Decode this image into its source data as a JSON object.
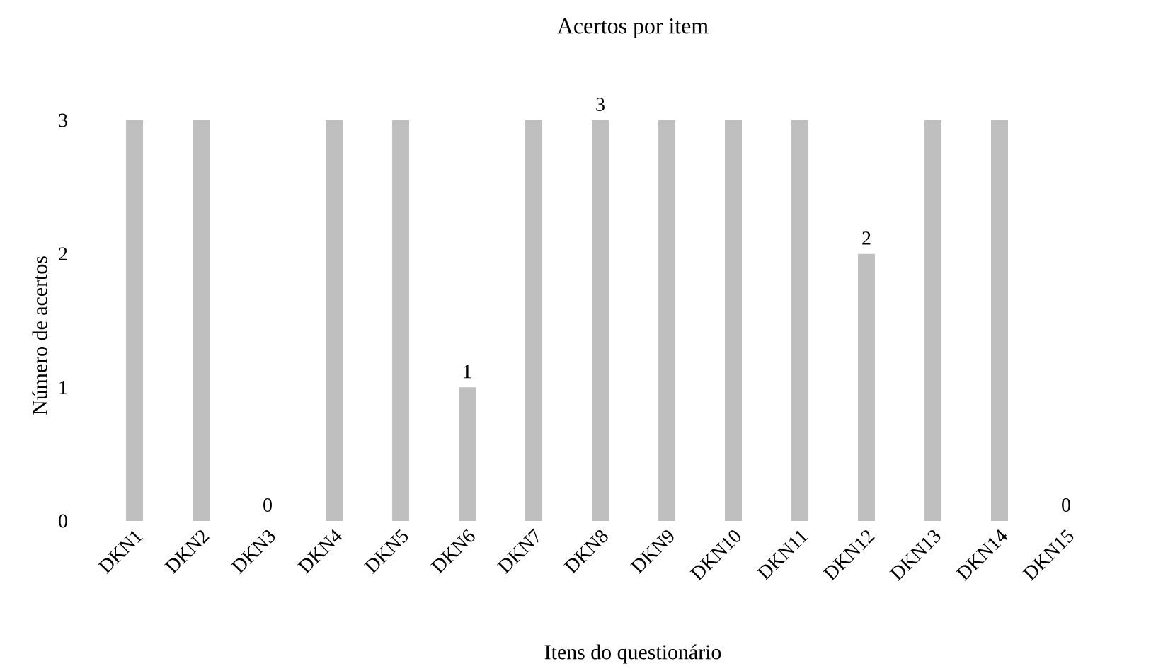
{
  "chart_data": {
    "type": "bar",
    "title": "Acertos por item",
    "xlabel": "Itens do questionário",
    "ylabel": "Número de acertos",
    "categories": [
      "DKN1",
      "DKN2",
      "DKN3",
      "DKN4",
      "DKN5",
      "DKN6",
      "DKN7",
      "DKN8",
      "DKN9",
      "DKN10",
      "DKN11",
      "DKN12",
      "DKN13",
      "DKN14",
      "DKN15"
    ],
    "values": [
      3,
      3,
      0,
      3,
      3,
      1,
      3,
      3,
      3,
      3,
      3,
      2,
      3,
      3,
      0
    ],
    "value_labels": [
      null,
      null,
      "0",
      null,
      null,
      "1",
      null,
      "3",
      null,
      null,
      null,
      "2",
      null,
      null,
      "0"
    ],
    "color": "#bfbfbf",
    "ylim": [
      0,
      3
    ],
    "yticks": [
      0,
      1,
      2,
      3
    ]
  }
}
